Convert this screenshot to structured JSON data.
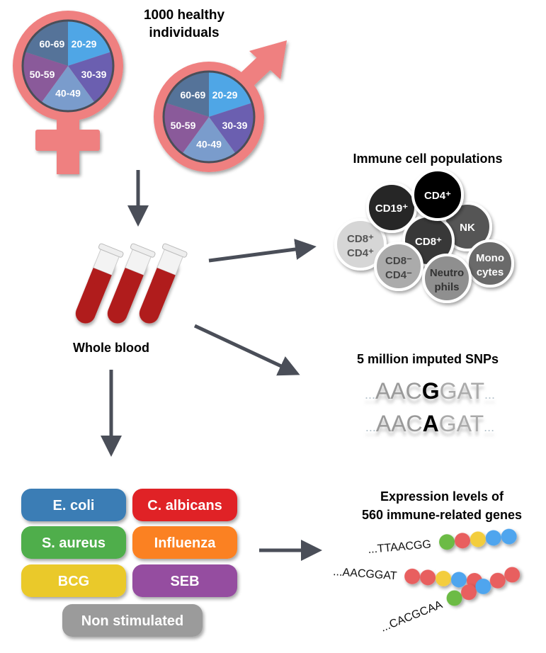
{
  "title": {
    "line1": "1000 healthy",
    "line2": "individuals"
  },
  "age_groups": [
    {
      "label": "20-29",
      "color": "#4fa6e6"
    },
    {
      "label": "30-39",
      "color": "#6b5fb0"
    },
    {
      "label": "40-49",
      "color": "#7a9ccc"
    },
    {
      "label": "50-59",
      "color": "#8a5a9a"
    },
    {
      "label": "60-69",
      "color": "#557399"
    }
  ],
  "sex_symbols": {
    "female_icon": "female-symbol",
    "male_icon": "male-symbol",
    "color": "#ef8080"
  },
  "whole_blood": {
    "label": "Whole blood",
    "icon": "blood-tubes",
    "color": "#b01c1c"
  },
  "immune_cells": {
    "title": "Immune cell populations",
    "cells": [
      {
        "line1": "CD8⁺",
        "line2": "CD4⁺",
        "color": "#d6d6d6",
        "text": "#555"
      },
      {
        "line1": "CD19⁺",
        "line2": "",
        "color": "#262626",
        "text": "#fff"
      },
      {
        "line1": "NK",
        "line2": "",
        "color": "#555555",
        "text": "#fff"
      },
      {
        "line1": "CD8⁺",
        "line2": "",
        "color": "#383838",
        "text": "#fff"
      },
      {
        "line1": "CD4⁺",
        "line2": "",
        "color": "#000000",
        "text": "#fff"
      },
      {
        "line1": "CD8⁻",
        "line2": "CD4⁻",
        "color": "#ababab",
        "text": "#444"
      },
      {
        "line1": "Mono",
        "line2": "cytes",
        "color": "#6a6a6a",
        "text": "#fff"
      },
      {
        "line1": "Neutro",
        "line2": "phils",
        "color": "#8f8f8f",
        "text": "#333"
      }
    ]
  },
  "snps": {
    "title": "5 million imputed SNPs",
    "rows": [
      {
        "prefix": "...",
        "left": "AAC",
        "variant": "G",
        "right": "GAT",
        "suffix": "..."
      },
      {
        "prefix": "...",
        "left": "AAC",
        "variant": "A",
        "right": "GAT",
        "suffix": "..."
      }
    ]
  },
  "stimuli": [
    {
      "label": "E. coli",
      "color": "#3a7db5"
    },
    {
      "label": "C. albicans",
      "color": "#e02328"
    },
    {
      "label": "S. aureus",
      "color": "#4fae4c"
    },
    {
      "label": "Influenza",
      "color": "#fb8123"
    },
    {
      "label": "BCG",
      "color": "#eac92a"
    },
    {
      "label": "SEB",
      "color": "#954ea0"
    },
    {
      "label": "Non stimulated",
      "color": "#9b9b9b"
    }
  ],
  "expression": {
    "title_line1": "Expression levels of",
    "title_line2": "560 immune-related genes",
    "bead_colors": {
      "green": "#6cbb45",
      "red": "#e85e5e",
      "yellow": "#f3cd3c",
      "blue": "#50a5ee"
    },
    "strands": [
      {
        "sequence": "...TTAACGG",
        "beads": [
          "green",
          "red",
          "yellow",
          "blue",
          "blue"
        ]
      },
      {
        "sequence": "...AACGGAT",
        "beads": [
          "red",
          "red",
          "yellow",
          "blue",
          "red"
        ]
      },
      {
        "sequence": "...CACGCAA",
        "beads": [
          "green",
          "red",
          "blue",
          "red",
          "red"
        ]
      }
    ]
  },
  "arrow_color": "#4a4e58"
}
